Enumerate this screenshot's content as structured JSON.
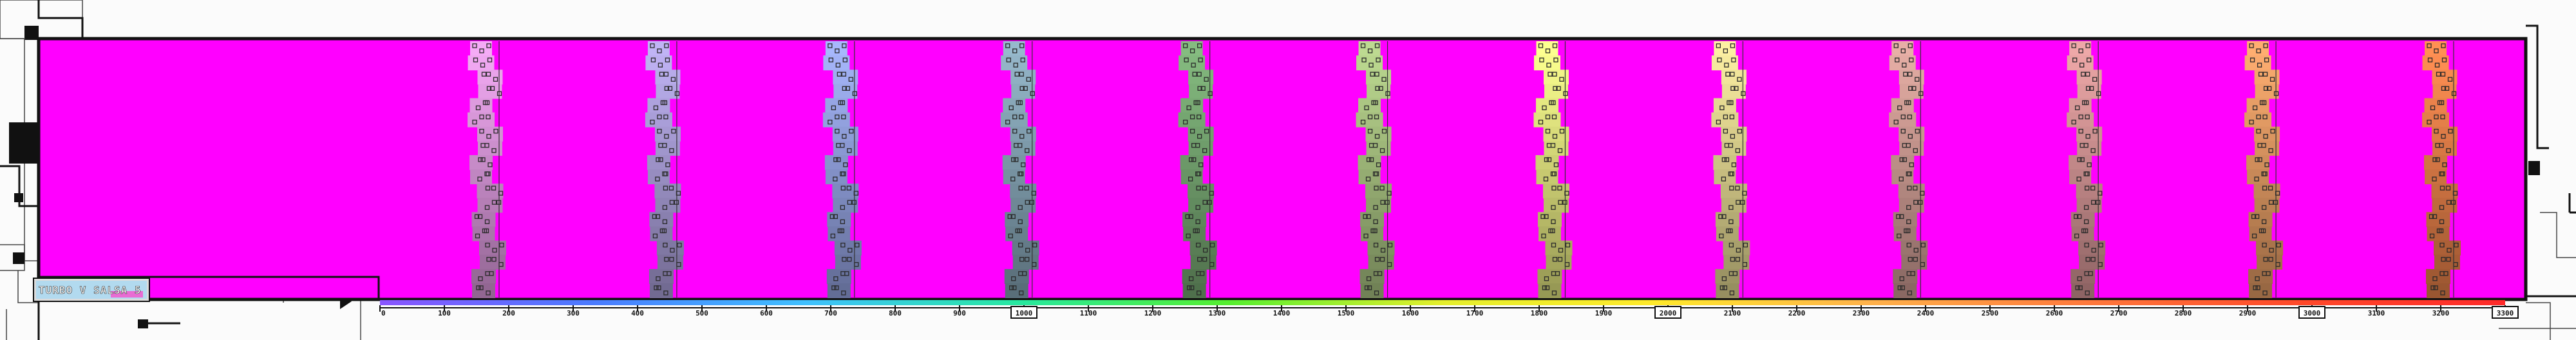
{
  "logo": {
    "text": "TURBO V SALSA 5"
  },
  "colors": {
    "background_key": "#ff00ff",
    "frame_ink": "#111111",
    "page_bg": "#fbfbfb"
  },
  "sprite_colors": [
    "#e9a3ea",
    "#b7abe9",
    "#9eaef0",
    "#8fb0c2",
    "#7fb37a",
    "#b4d08a",
    "#f1f488",
    "#f0e49a",
    "#dca79e",
    "#e3a0a0",
    "#f3a66b",
    "#f6894f"
  ],
  "ruler": {
    "gradient": [
      "#8a55ff",
      "#4b7bff",
      "#40c0ff",
      "#27e8a0",
      "#56ef2e",
      "#e5ef2d",
      "#ffe92b",
      "#ffb24a",
      "#ff7a3c",
      "#ff4a2a",
      "#ff2a2a"
    ],
    "ticks": [
      {
        "value": 0,
        "label": "0"
      },
      {
        "value": 100,
        "label": "100"
      },
      {
        "value": 200,
        "label": "200"
      },
      {
        "value": 300,
        "label": "300"
      },
      {
        "value": 400,
        "label": "400"
      },
      {
        "value": 500,
        "label": "500"
      },
      {
        "value": 600,
        "label": "600"
      },
      {
        "value": 700,
        "label": "700"
      },
      {
        "value": 800,
        "label": "800"
      },
      {
        "value": 900,
        "label": "900"
      },
      {
        "value": 1000,
        "label": "1000",
        "boxed": true
      },
      {
        "value": 1100,
        "label": "1100"
      },
      {
        "value": 1200,
        "label": "1200"
      },
      {
        "value": 1300,
        "label": "1300"
      },
      {
        "value": 1400,
        "label": "1400"
      },
      {
        "value": 1500,
        "label": "1500"
      },
      {
        "value": 1600,
        "label": "1600"
      },
      {
        "value": 1700,
        "label": "1700"
      },
      {
        "value": 1800,
        "label": "1800"
      },
      {
        "value": 1900,
        "label": "1900"
      },
      {
        "value": 2000,
        "label": "2000",
        "boxed": true
      },
      {
        "value": 2100,
        "label": "2100"
      },
      {
        "value": 2200,
        "label": "2200"
      },
      {
        "value": 2300,
        "label": "2300"
      },
      {
        "value": 2400,
        "label": "2400"
      },
      {
        "value": 2500,
        "label": "2500"
      },
      {
        "value": 2600,
        "label": "2600"
      },
      {
        "value": 2700,
        "label": "2700"
      },
      {
        "value": 2800,
        "label": "2800"
      },
      {
        "value": 2900,
        "label": "2900"
      },
      {
        "value": 3000,
        "label": "3000",
        "boxed": true
      },
      {
        "value": 3100,
        "label": "3100"
      },
      {
        "value": 3200,
        "label": "3200"
      },
      {
        "value": 3300,
        "label": "3300",
        "boxed": true
      }
    ],
    "max": 3300
  }
}
